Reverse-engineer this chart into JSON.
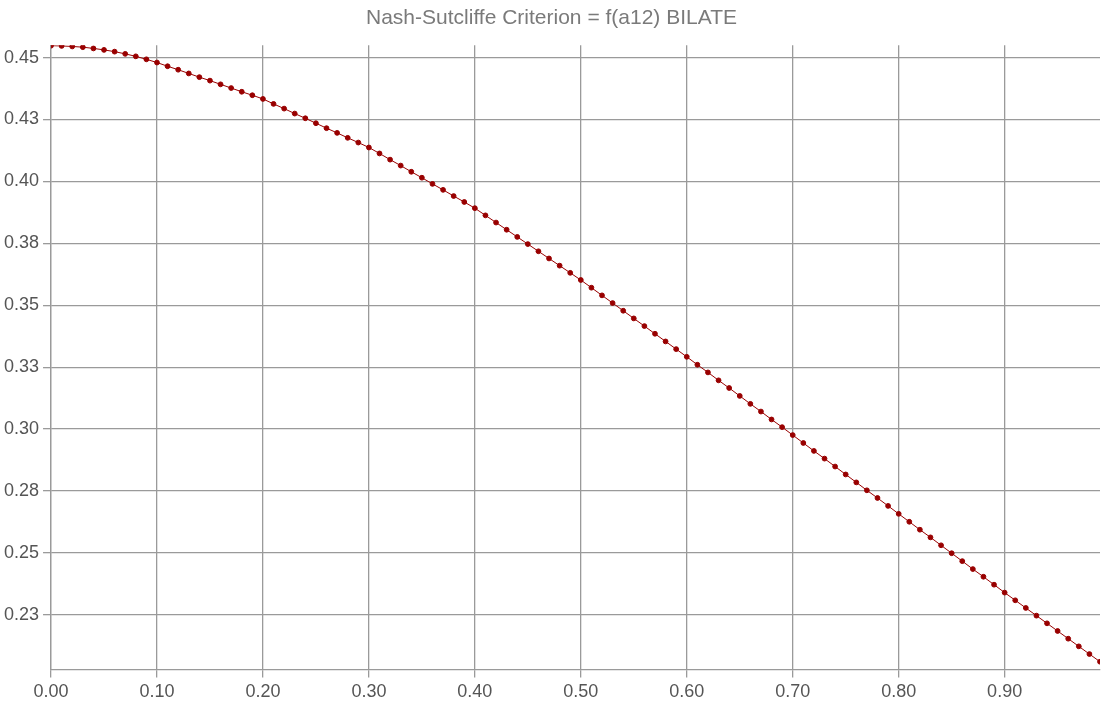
{
  "chart_data": {
    "type": "line",
    "title": "Nash-Sutcliffe Criterion = f(a12) BILATE",
    "x": [
      0,
      0.01,
      0.02,
      0.03,
      0.04,
      0.05,
      0.06,
      0.07,
      0.08,
      0.09,
      0.1,
      0.11,
      0.12,
      0.13,
      0.14,
      0.15,
      0.16,
      0.17,
      0.18,
      0.19,
      0.2,
      0.21,
      0.22,
      0.23,
      0.24,
      0.25,
      0.26,
      0.27,
      0.28,
      0.29,
      0.3,
      0.31,
      0.32,
      0.33,
      0.34,
      0.35,
      0.36,
      0.37,
      0.38,
      0.39,
      0.4,
      0.41,
      0.42,
      0.43,
      0.44,
      0.45,
      0.46,
      0.47,
      0.48,
      0.49,
      0.5,
      0.51,
      0.52,
      0.53,
      0.54,
      0.55,
      0.56,
      0.57,
      0.58,
      0.59,
      0.6,
      0.61,
      0.62,
      0.63,
      0.64,
      0.65,
      0.66,
      0.67,
      0.68,
      0.69,
      0.7,
      0.71,
      0.72,
      0.73,
      0.74,
      0.75,
      0.76,
      0.77,
      0.78,
      0.79,
      0.8,
      0.81,
      0.82,
      0.83,
      0.84,
      0.85,
      0.86,
      0.87,
      0.88,
      0.89,
      0.9,
      0.91,
      0.92,
      0.93,
      0.94,
      0.95,
      0.96,
      0.97,
      0.98,
      0.99
    ],
    "series": [
      {
        "color": "#990000",
        "values": [
          0.4548,
          0.4547,
          0.4545,
          0.4542,
          0.4537,
          0.4531,
          0.4524,
          0.4515,
          0.4505,
          0.4493,
          0.448,
          0.4465,
          0.4451,
          0.4436,
          0.4421,
          0.4407,
          0.4392,
          0.4377,
          0.4362,
          0.4348,
          0.4333,
          0.4313,
          0.4294,
          0.4274,
          0.4255,
          0.4235,
          0.4215,
          0.4196,
          0.4176,
          0.4157,
          0.4137,
          0.4113,
          0.4088,
          0.4064,
          0.4039,
          0.4015,
          0.399,
          0.3966,
          0.3941,
          0.3917,
          0.3892,
          0.3863,
          0.3834,
          0.3805,
          0.3776,
          0.3747,
          0.3718,
          0.3689,
          0.366,
          0.3631,
          0.3602,
          0.3571,
          0.354,
          0.3509,
          0.3478,
          0.3447,
          0.3416,
          0.3385,
          0.3354,
          0.3323,
          0.3292,
          0.326,
          0.3229,
          0.3197,
          0.3166,
          0.3134,
          0.3102,
          0.3071,
          0.3039,
          0.3008,
          0.2976,
          0.2944,
          0.2912,
          0.2881,
          0.2849,
          0.2817,
          0.2785,
          0.2753,
          0.2722,
          0.269,
          0.2658,
          0.2626,
          0.2594,
          0.2563,
          0.2531,
          0.2499,
          0.2467,
          0.2435,
          0.2404,
          0.2372,
          0.234,
          0.2309,
          0.2278,
          0.2247,
          0.2216,
          0.2185,
          0.2154,
          0.2123,
          0.2092,
          0.2061
        ]
      }
    ],
    "xlim": [
      0,
      0.99
    ],
    "xticks": [
      {
        "value": 0,
        "label": "0.00"
      },
      {
        "value": 0.1,
        "label": "0.10"
      },
      {
        "value": 0.2,
        "label": "0.20"
      },
      {
        "value": 0.3,
        "label": "0.30"
      },
      {
        "value": 0.4,
        "label": "0.40"
      },
      {
        "value": 0.5,
        "label": "0.50"
      },
      {
        "value": 0.6,
        "label": "0.60"
      },
      {
        "value": 0.7,
        "label": "0.70"
      },
      {
        "value": 0.8,
        "label": "0.80"
      },
      {
        "value": 0.9,
        "label": "0.90"
      }
    ],
    "ylim": [
      0.203,
      0.455
    ],
    "yticks": [
      {
        "value": 0.225,
        "label": "0.23"
      },
      {
        "value": 0.25,
        "label": "0.25"
      },
      {
        "value": 0.275,
        "label": "0.28"
      },
      {
        "value": 0.3,
        "label": "0.30"
      },
      {
        "value": 0.325,
        "label": "0.33"
      },
      {
        "value": 0.35,
        "label": "0.35"
      },
      {
        "value": 0.375,
        "label": "0.38"
      },
      {
        "value": 0.4,
        "label": "0.40"
      },
      {
        "value": 0.425,
        "label": "0.43"
      },
      {
        "value": 0.45,
        "label": "0.45"
      }
    ],
    "grid": true,
    "legend": false,
    "marker": "circle",
    "line_style": "solid"
  }
}
